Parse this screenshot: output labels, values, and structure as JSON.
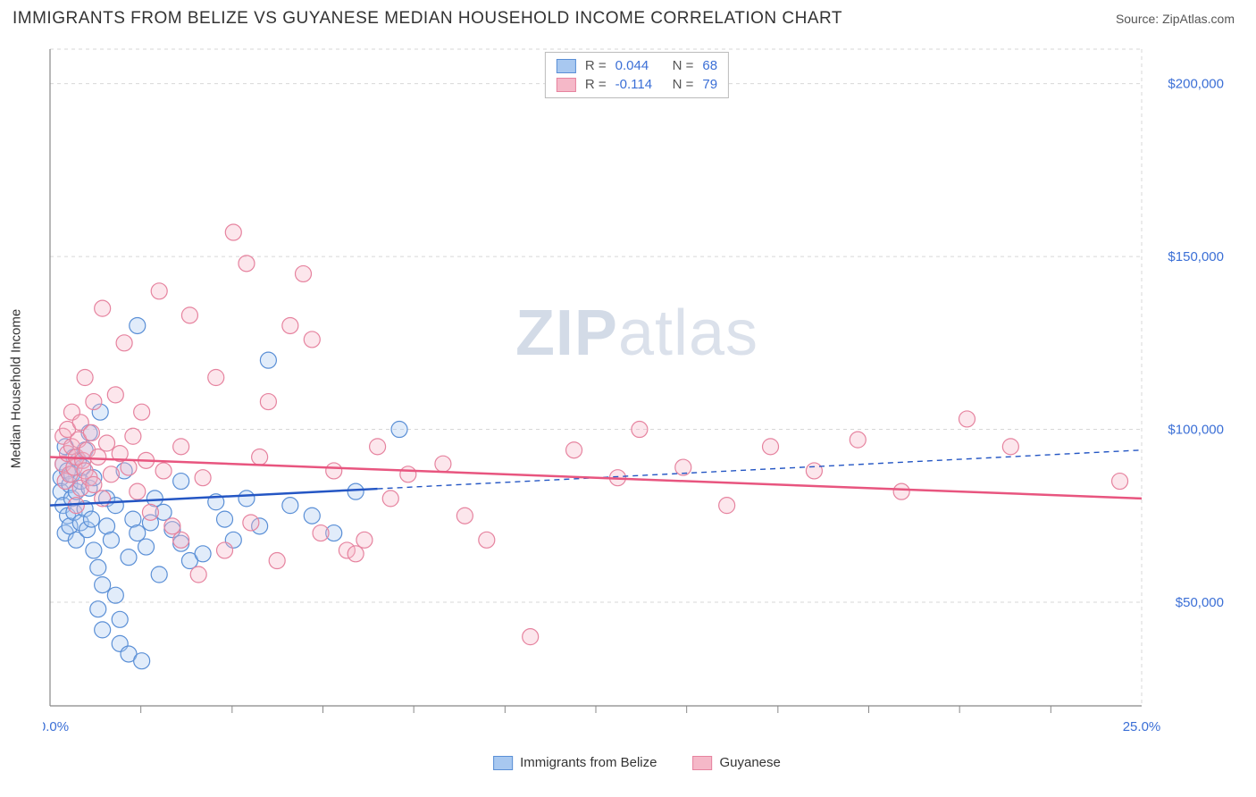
{
  "title": "IMMIGRANTS FROM BELIZE VS GUYANESE MEDIAN HOUSEHOLD INCOME CORRELATION CHART",
  "source_label": "Source: ",
  "source_name": "ZipAtlas.com",
  "watermark_zip": "ZIP",
  "watermark_atlas": "atlas",
  "ylabel": "Median Household Income",
  "chart": {
    "type": "scatter",
    "background_color": "#ffffff",
    "grid_color": "#d7d7d7",
    "axis_color": "#888888",
    "tick_color": "#888888",
    "xlim": [
      0,
      25
    ],
    "ylim": [
      20000,
      210000
    ],
    "yticks": [
      50000,
      100000,
      150000,
      200000
    ],
    "ytick_labels": [
      "$50,000",
      "$100,000",
      "$150,000",
      "$200,000"
    ],
    "xtick_labels": {
      "min": "0.0%",
      "max": "25.0%"
    },
    "xtick_positions": [
      2.08,
      4.17,
      6.25,
      8.33,
      10.42,
      12.5,
      14.58,
      16.67,
      18.75,
      20.83,
      22.92
    ],
    "marker_radius": 9,
    "marker_fill_opacity": 0.35,
    "marker_stroke_width": 1.2,
    "series": [
      {
        "name": "Immigrants from Belize",
        "color_fill": "#a8c8f0",
        "color_stroke": "#5a8fd6",
        "trend_color": "#2456c4",
        "trend_solid_xmax": 7.5,
        "trend_y_start": 78000,
        "trend_y_end": 94000,
        "R": "0.044",
        "N": "68",
        "points": [
          [
            0.25,
            86000
          ],
          [
            0.25,
            82000
          ],
          [
            0.3,
            78000
          ],
          [
            0.3,
            90000
          ],
          [
            0.35,
            95000
          ],
          [
            0.35,
            70000
          ],
          [
            0.4,
            88000
          ],
          [
            0.4,
            75000
          ],
          [
            0.45,
            84000
          ],
          [
            0.45,
            72000
          ],
          [
            0.5,
            80000
          ],
          [
            0.5,
            87000
          ],
          [
            0.55,
            76000
          ],
          [
            0.55,
            92000
          ],
          [
            0.6,
            82000
          ],
          [
            0.6,
            68000
          ],
          [
            0.65,
            91000
          ],
          [
            0.7,
            85000
          ],
          [
            0.7,
            73000
          ],
          [
            0.75,
            89000
          ],
          [
            0.8,
            77000
          ],
          [
            0.8,
            94000
          ],
          [
            0.85,
            71000
          ],
          [
            0.9,
            83000
          ],
          [
            0.9,
            99000
          ],
          [
            0.95,
            74000
          ],
          [
            1.0,
            86000
          ],
          [
            1.0,
            65000
          ],
          [
            1.1,
            48000
          ],
          [
            1.1,
            60000
          ],
          [
            1.15,
            105000
          ],
          [
            1.2,
            55000
          ],
          [
            1.2,
            42000
          ],
          [
            1.3,
            72000
          ],
          [
            1.3,
            80000
          ],
          [
            1.4,
            68000
          ],
          [
            1.5,
            78000
          ],
          [
            1.5,
            52000
          ],
          [
            1.6,
            45000
          ],
          [
            1.6,
            38000
          ],
          [
            1.7,
            88000
          ],
          [
            1.8,
            63000
          ],
          [
            1.8,
            35000
          ],
          [
            1.9,
            74000
          ],
          [
            2.0,
            70000
          ],
          [
            2.0,
            130000
          ],
          [
            2.1,
            33000
          ],
          [
            2.2,
            66000
          ],
          [
            2.3,
            73000
          ],
          [
            2.4,
            80000
          ],
          [
            2.5,
            58000
          ],
          [
            2.6,
            76000
          ],
          [
            2.8,
            71000
          ],
          [
            3.0,
            67000
          ],
          [
            3.0,
            85000
          ],
          [
            3.2,
            62000
          ],
          [
            3.5,
            64000
          ],
          [
            3.8,
            79000
          ],
          [
            4.0,
            74000
          ],
          [
            4.2,
            68000
          ],
          [
            4.5,
            80000
          ],
          [
            4.8,
            72000
          ],
          [
            5.0,
            120000
          ],
          [
            5.5,
            78000
          ],
          [
            6.0,
            75000
          ],
          [
            6.5,
            70000
          ],
          [
            7.0,
            82000
          ],
          [
            8.0,
            100000
          ]
        ]
      },
      {
        "name": "Guyanese",
        "color_fill": "#f5b8c8",
        "color_stroke": "#e6839f",
        "trend_color": "#e8557f",
        "trend_solid_xmax": 25,
        "trend_y_start": 92000,
        "trend_y_end": 80000,
        "R": "-0.114",
        "N": "79",
        "points": [
          [
            0.3,
            90000
          ],
          [
            0.3,
            98000
          ],
          [
            0.35,
            85000
          ],
          [
            0.4,
            93000
          ],
          [
            0.4,
            100000
          ],
          [
            0.45,
            87000
          ],
          [
            0.5,
            95000
          ],
          [
            0.5,
            105000
          ],
          [
            0.55,
            89000
          ],
          [
            0.6,
            92000
          ],
          [
            0.6,
            78000
          ],
          [
            0.65,
            97000
          ],
          [
            0.7,
            83000
          ],
          [
            0.7,
            102000
          ],
          [
            0.75,
            91000
          ],
          [
            0.8,
            88000
          ],
          [
            0.8,
            115000
          ],
          [
            0.85,
            94000
          ],
          [
            0.9,
            86000
          ],
          [
            0.95,
            99000
          ],
          [
            1.0,
            84000
          ],
          [
            1.0,
            108000
          ],
          [
            1.1,
            92000
          ],
          [
            1.2,
            80000
          ],
          [
            1.2,
            135000
          ],
          [
            1.3,
            96000
          ],
          [
            1.4,
            87000
          ],
          [
            1.5,
            110000
          ],
          [
            1.6,
            93000
          ],
          [
            1.7,
            125000
          ],
          [
            1.8,
            89000
          ],
          [
            1.9,
            98000
          ],
          [
            2.0,
            82000
          ],
          [
            2.1,
            105000
          ],
          [
            2.2,
            91000
          ],
          [
            2.3,
            76000
          ],
          [
            2.5,
            140000
          ],
          [
            2.6,
            88000
          ],
          [
            2.8,
            72000
          ],
          [
            3.0,
            95000
          ],
          [
            3.0,
            68000
          ],
          [
            3.2,
            133000
          ],
          [
            3.4,
            58000
          ],
          [
            3.5,
            86000
          ],
          [
            3.8,
            115000
          ],
          [
            4.0,
            65000
          ],
          [
            4.2,
            157000
          ],
          [
            4.5,
            148000
          ],
          [
            4.6,
            73000
          ],
          [
            4.8,
            92000
          ],
          [
            5.0,
            108000
          ],
          [
            5.2,
            62000
          ],
          [
            5.5,
            130000
          ],
          [
            5.8,
            145000
          ],
          [
            6.0,
            126000
          ],
          [
            6.2,
            70000
          ],
          [
            6.5,
            88000
          ],
          [
            6.8,
            65000
          ],
          [
            7.0,
            64000
          ],
          [
            7.2,
            68000
          ],
          [
            7.5,
            95000
          ],
          [
            7.8,
            80000
          ],
          [
            8.2,
            87000
          ],
          [
            9.0,
            90000
          ],
          [
            9.5,
            75000
          ],
          [
            10.0,
            68000
          ],
          [
            11.0,
            40000
          ],
          [
            12.0,
            94000
          ],
          [
            13.0,
            86000
          ],
          [
            13.5,
            100000
          ],
          [
            14.5,
            89000
          ],
          [
            15.5,
            78000
          ],
          [
            16.5,
            95000
          ],
          [
            17.5,
            88000
          ],
          [
            18.5,
            97000
          ],
          [
            19.5,
            82000
          ],
          [
            21.0,
            103000
          ],
          [
            22.0,
            95000
          ],
          [
            24.5,
            85000
          ]
        ]
      }
    ]
  }
}
